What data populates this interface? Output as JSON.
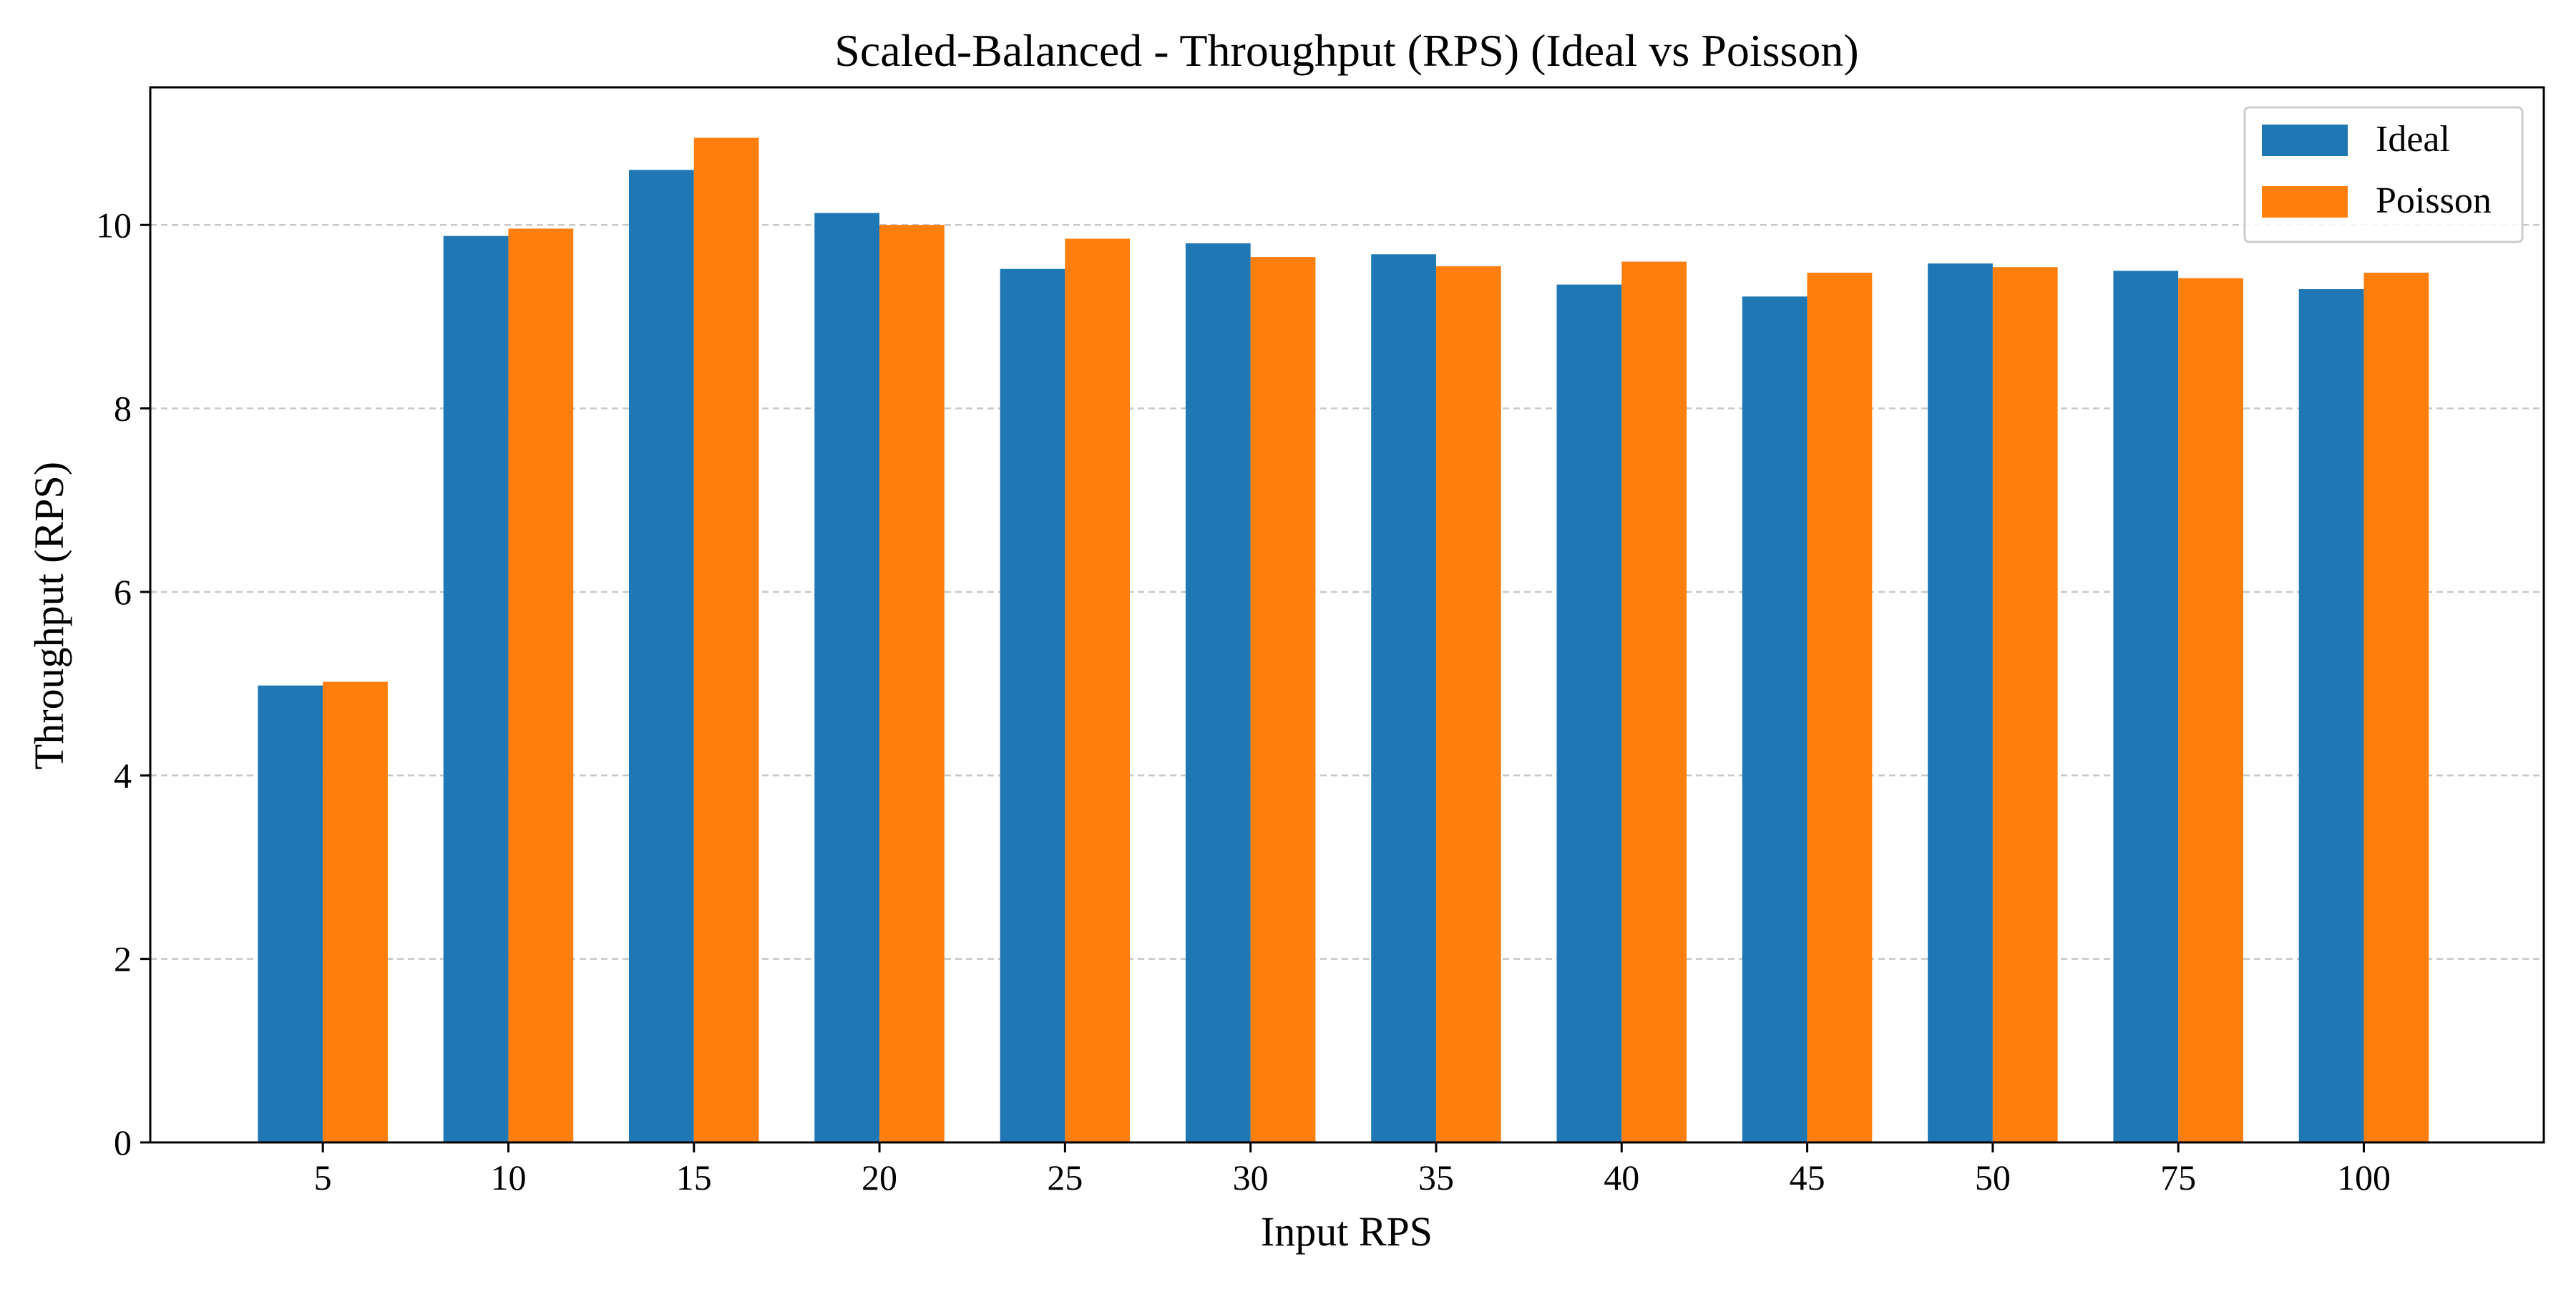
{
  "chart_data": {
    "type": "bar",
    "title": "Scaled-Balanced - Throughput (RPS) (Ideal vs Poisson)",
    "xlabel": "Input RPS",
    "ylabel": "Throughput (RPS)",
    "categories": [
      "5",
      "10",
      "15",
      "20",
      "25",
      "30",
      "35",
      "40",
      "45",
      "50",
      "75",
      "100"
    ],
    "ylim": [
      0,
      11.5
    ],
    "yticks": [
      0,
      2,
      4,
      6,
      8,
      10
    ],
    "grid": "horizontal dashed",
    "legend_position": "top-right",
    "series": [
      {
        "name": "Ideal",
        "color": "#1f77b4",
        "values": [
          4.98,
          9.88,
          10.6,
          10.13,
          9.52,
          9.8,
          9.68,
          9.35,
          9.22,
          9.58,
          9.5,
          9.3
        ]
      },
      {
        "name": "Poisson",
        "color": "#ff7f0e",
        "values": [
          5.02,
          9.96,
          10.95,
          10.0,
          9.85,
          9.65,
          9.55,
          9.6,
          9.48,
          9.54,
          9.42,
          9.48
        ]
      }
    ]
  }
}
